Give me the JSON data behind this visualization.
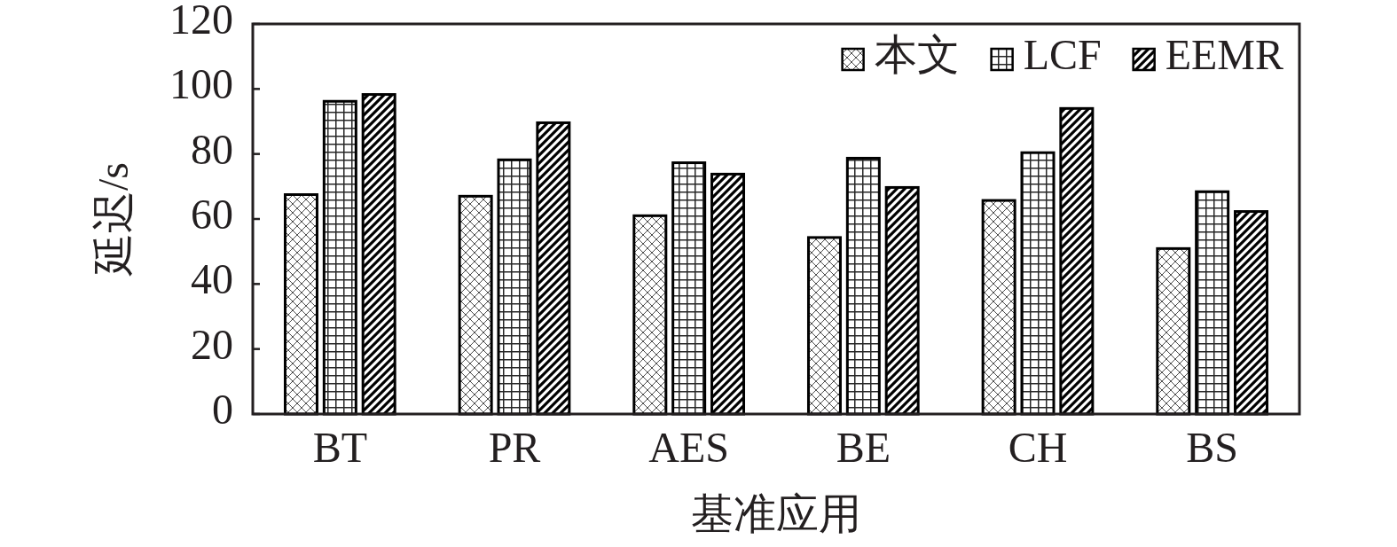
{
  "chart_data": {
    "type": "bar",
    "xlabel": "基准应用",
    "ylabel": "延迟/s",
    "categories": [
      "BT",
      "PR",
      "AES",
      "BE",
      "CH",
      "BS"
    ],
    "series": [
      {
        "name": "本文",
        "color": "#000000",
        "values": [
          67.5,
          67.0,
          61.0,
          54.3,
          65.7,
          50.9
        ]
      },
      {
        "name": "LCF",
        "color": "#000000",
        "values": [
          96.2,
          78.2,
          77.3,
          78.7,
          80.4,
          68.4
        ]
      },
      {
        "name": "EEMR",
        "color": "#000000",
        "values": [
          98.3,
          89.6,
          73.8,
          69.7,
          94.0,
          62.3
        ]
      }
    ],
    "ylim": [
      0,
      120
    ],
    "yticks": [
      0,
      20,
      40,
      60,
      80,
      100,
      120
    ],
    "legend": "top right"
  }
}
